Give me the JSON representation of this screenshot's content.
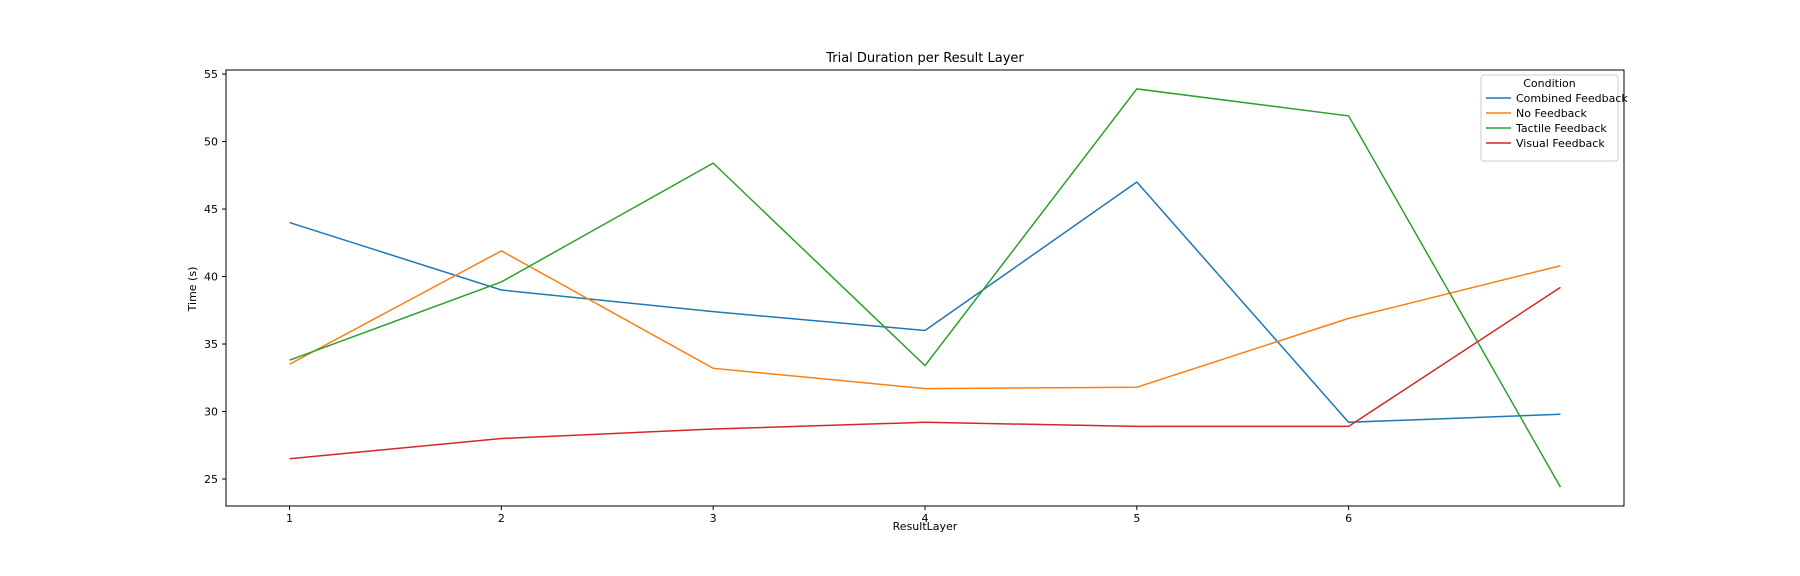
{
  "chart_data": {
    "type": "line",
    "title": "Trial Duration per Result Layer",
    "xlabel": "ResultLayer",
    "ylabel": "Time (s)",
    "x": [
      1,
      2,
      3,
      4,
      5,
      6,
      7
    ],
    "xticks": [
      "1",
      "2",
      "3",
      "4",
      "5",
      "6"
    ],
    "yticks": [
      "25",
      "30",
      "35",
      "40",
      "45",
      "50",
      "55"
    ],
    "xlim": [
      0.7,
      7.3
    ],
    "ylim": [
      23,
      55.3
    ],
    "grid": false,
    "legend": {
      "title": "Condition",
      "placement": "top-right"
    },
    "series": [
      {
        "name": "Combined Feedback",
        "color": "#1f77b4",
        "values": [
          44.0,
          39.0,
          37.4,
          36.0,
          47.0,
          29.2,
          29.8
        ]
      },
      {
        "name": "No Feedback",
        "color": "#ff7f0e",
        "values": [
          33.5,
          41.9,
          33.2,
          31.7,
          31.8,
          36.9,
          40.8
        ]
      },
      {
        "name": "Tactile Feedback",
        "color": "#2ca02c",
        "values": [
          33.8,
          39.6,
          48.4,
          33.4,
          53.9,
          51.9,
          24.4
        ]
      },
      {
        "name": "Visual Feedback",
        "color": "#d62728",
        "values": [
          26.5,
          28.0,
          28.7,
          29.2,
          28.9,
          28.9,
          39.2
        ]
      }
    ]
  }
}
